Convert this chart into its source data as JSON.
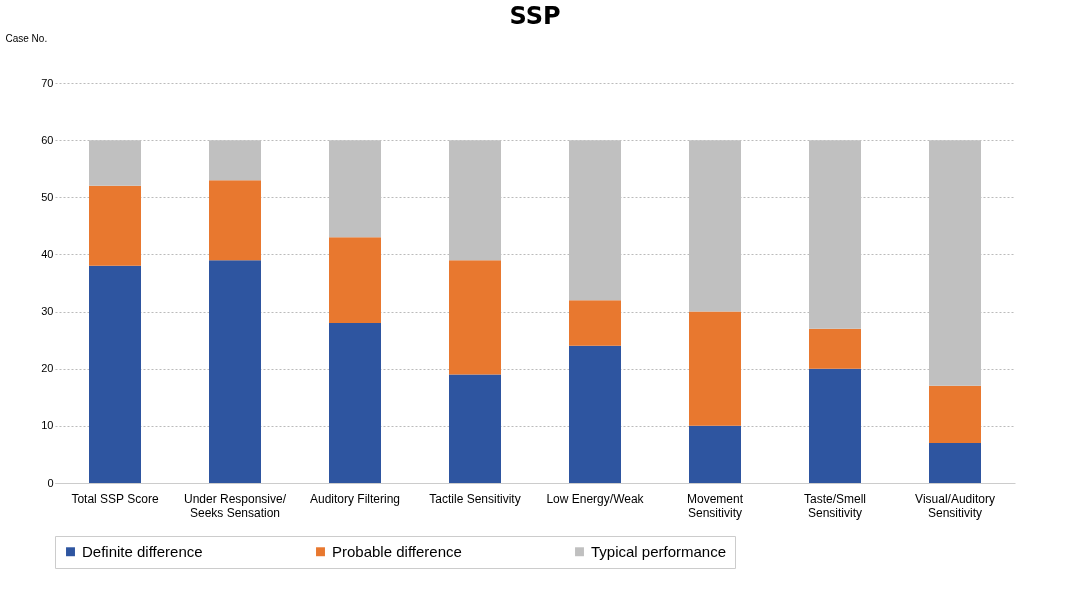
{
  "chart_data": {
    "type": "bar",
    "title": "SSP",
    "ylabel": "Case No.",
    "stacked": true,
    "categories": [
      "Total SSP Score",
      "Under Responsive/ Seeks Sensation",
      "Auditory Filtering",
      "Tactile Sensitivity",
      "Low Energy/Weak",
      "Movement Sensitivity",
      "Taste/Smell Sensitivity",
      "Visual/Auditory Sensitivity"
    ],
    "series": [
      {
        "name": "Definite difference",
        "color": "#2e55a0",
        "values": [
          38,
          39,
          28,
          19,
          24,
          10,
          20,
          7
        ]
      },
      {
        "name": "Probable difference",
        "color": "#e8782f",
        "values": [
          14,
          14,
          15,
          20,
          8,
          20,
          7,
          10
        ]
      },
      {
        "name": "Typical performance",
        "color": "#c0c0c0",
        "values": [
          8,
          7,
          17,
          21,
          28,
          30,
          33,
          43
        ]
      }
    ],
    "ylim": [
      0,
      70
    ],
    "yticks": [
      0,
      10,
      20,
      30,
      40,
      50,
      60,
      70
    ],
    "grid": "y",
    "legend": "bottom"
  }
}
